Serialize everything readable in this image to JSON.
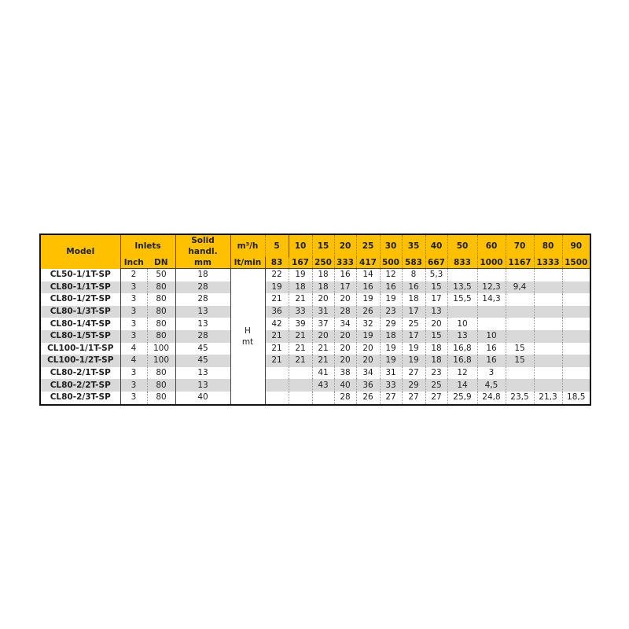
{
  "header": {
    "model": "Model",
    "inlets": "Inlets",
    "inch": "Inch",
    "dn": "DN",
    "solid": "Solid handl.",
    "solid_unit": "mm",
    "flow_unit_1": "m³/h",
    "flow_unit_2": "lt/min",
    "flows_m3h": [
      "5",
      "10",
      "15",
      "20",
      "25",
      "30",
      "35",
      "40",
      "50",
      "60",
      "70",
      "80",
      "90"
    ],
    "flows_lmin": [
      "83",
      "167",
      "250",
      "333",
      "417",
      "500",
      "583",
      "667",
      "833",
      "1000",
      "1167",
      "1333",
      "1500"
    ]
  },
  "head_label": {
    "line1": "H",
    "line2": "mt"
  },
  "colors": {
    "header_bg": "#FFC000",
    "alt_row": "#d9d9d9"
  },
  "rows": [
    {
      "model": "CL50-1/1T-SP",
      "inch": "2",
      "dn": "50",
      "solid": "18",
      "h": [
        "22",
        "19",
        "18",
        "16",
        "14",
        "12",
        "8",
        "5,3",
        "",
        "",
        "",
        "",
        ""
      ]
    },
    {
      "model": "CL80-1/1T-SP",
      "inch": "3",
      "dn": "80",
      "solid": "28",
      "h": [
        "19",
        "18",
        "18",
        "17",
        "16",
        "16",
        "16",
        "15",
        "13,5",
        "12,3",
        "9,4",
        "",
        ""
      ]
    },
    {
      "model": "CL80-1/2T-SP",
      "inch": "3",
      "dn": "80",
      "solid": "28",
      "h": [
        "21",
        "21",
        "20",
        "20",
        "19",
        "19",
        "18",
        "17",
        "15,5",
        "14,3",
        "",
        "",
        ""
      ]
    },
    {
      "model": "CL80-1/3T-SP",
      "inch": "3",
      "dn": "80",
      "solid": "13",
      "h": [
        "36",
        "33",
        "31",
        "28",
        "26",
        "23",
        "17",
        "13",
        "",
        "",
        "",
        "",
        ""
      ]
    },
    {
      "model": "CL80-1/4T-SP",
      "inch": "3",
      "dn": "80",
      "solid": "13",
      "h": [
        "42",
        "39",
        "37",
        "34",
        "32",
        "29",
        "25",
        "20",
        "10",
        "",
        "",
        "",
        ""
      ]
    },
    {
      "model": "CL80-1/5T-SP",
      "inch": "3",
      "dn": "80",
      "solid": "28",
      "h": [
        "21",
        "21",
        "20",
        "20",
        "19",
        "18",
        "17",
        "15",
        "13",
        "10",
        "",
        "",
        ""
      ]
    },
    {
      "model": "CL100-1/1T-SP",
      "inch": "4",
      "dn": "100",
      "solid": "45",
      "h": [
        "21",
        "21",
        "21",
        "20",
        "20",
        "19",
        "19",
        "18",
        "16,8",
        "16",
        "15",
        "",
        ""
      ]
    },
    {
      "model": "CL100-1/2T-SP",
      "inch": "4",
      "dn": "100",
      "solid": "45",
      "h": [
        "21",
        "21",
        "21",
        "20",
        "20",
        "19",
        "19",
        "18",
        "16,8",
        "16",
        "15",
        "",
        ""
      ]
    },
    {
      "model": "CL80-2/1T-SP",
      "inch": "3",
      "dn": "80",
      "solid": "13",
      "h": [
        "",
        "",
        "41",
        "38",
        "34",
        "31",
        "27",
        "23",
        "12",
        "3",
        "",
        "",
        ""
      ]
    },
    {
      "model": "CL80-2/2T-SP",
      "inch": "3",
      "dn": "80",
      "solid": "13",
      "h": [
        "",
        "",
        "43",
        "40",
        "36",
        "33",
        "29",
        "25",
        "14",
        "4,5",
        "",
        "",
        ""
      ]
    },
    {
      "model": "CL80-2/3T-SP",
      "inch": "3",
      "dn": "80",
      "solid": "40",
      "h": [
        "",
        "",
        "",
        "28",
        "26",
        "27",
        "27",
        "27",
        "25,9",
        "24,8",
        "23,5",
        "21,3",
        "18,5"
      ]
    }
  ]
}
